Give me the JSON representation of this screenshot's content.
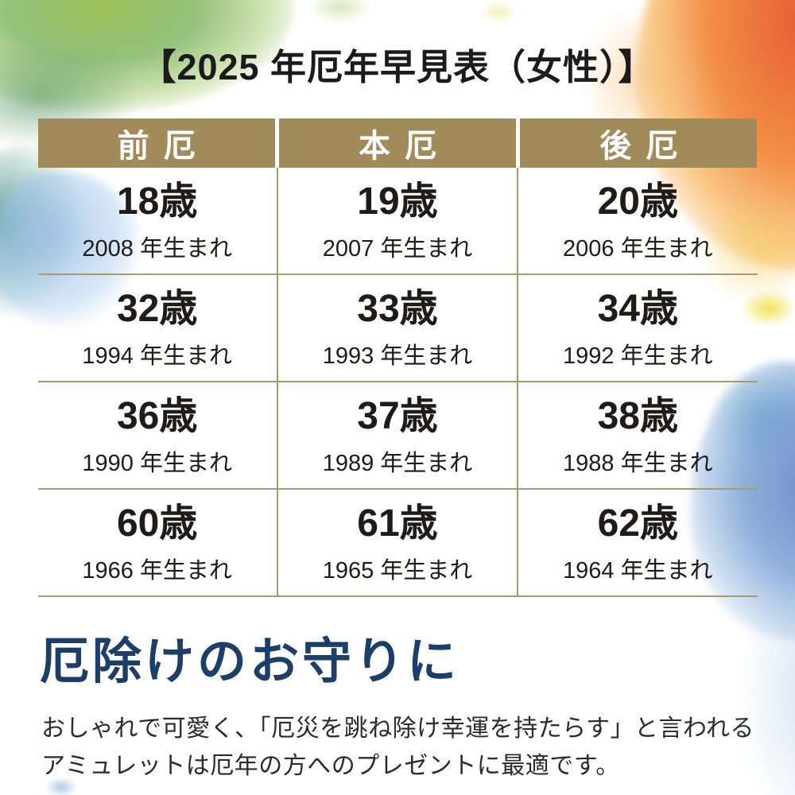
{
  "title": "【2025 年厄年早見表（女性）】",
  "table": {
    "headers": [
      "前厄",
      "本厄",
      "後厄"
    ],
    "rows": [
      [
        {
          "age": "18歳",
          "born": "2008 年生まれ"
        },
        {
          "age": "19歳",
          "born": "2007 年生まれ"
        },
        {
          "age": "20歳",
          "born": "2006 年生まれ"
        }
      ],
      [
        {
          "age": "32歳",
          "born": "1994 年生まれ"
        },
        {
          "age": "33歳",
          "born": "1993 年生まれ"
        },
        {
          "age": "34歳",
          "born": "1992 年生まれ"
        }
      ],
      [
        {
          "age": "36歳",
          "born": "1990 年生まれ"
        },
        {
          "age": "37歳",
          "born": "1989 年生まれ"
        },
        {
          "age": "38歳",
          "born": "1988 年生まれ"
        }
      ],
      [
        {
          "age": "60歳",
          "born": "1966 年生まれ"
        },
        {
          "age": "61歳",
          "born": "1965 年生まれ"
        },
        {
          "age": "62歳",
          "born": "1964 年生まれ"
        }
      ]
    ]
  },
  "footer": {
    "heading": "厄除けのお守りに",
    "line1": "おしゃれで可愛く、「厄災を跳ね除け幸運を持たらす」と言われる",
    "line2": "アミュレットは厄年の方へのプレゼントに最適です。"
  },
  "colors": {
    "header_bg": "#a28b5b",
    "grid_line": "#a89a6e",
    "heading_navy": "#1c3e6b",
    "text_dark": "#1f1b18"
  }
}
